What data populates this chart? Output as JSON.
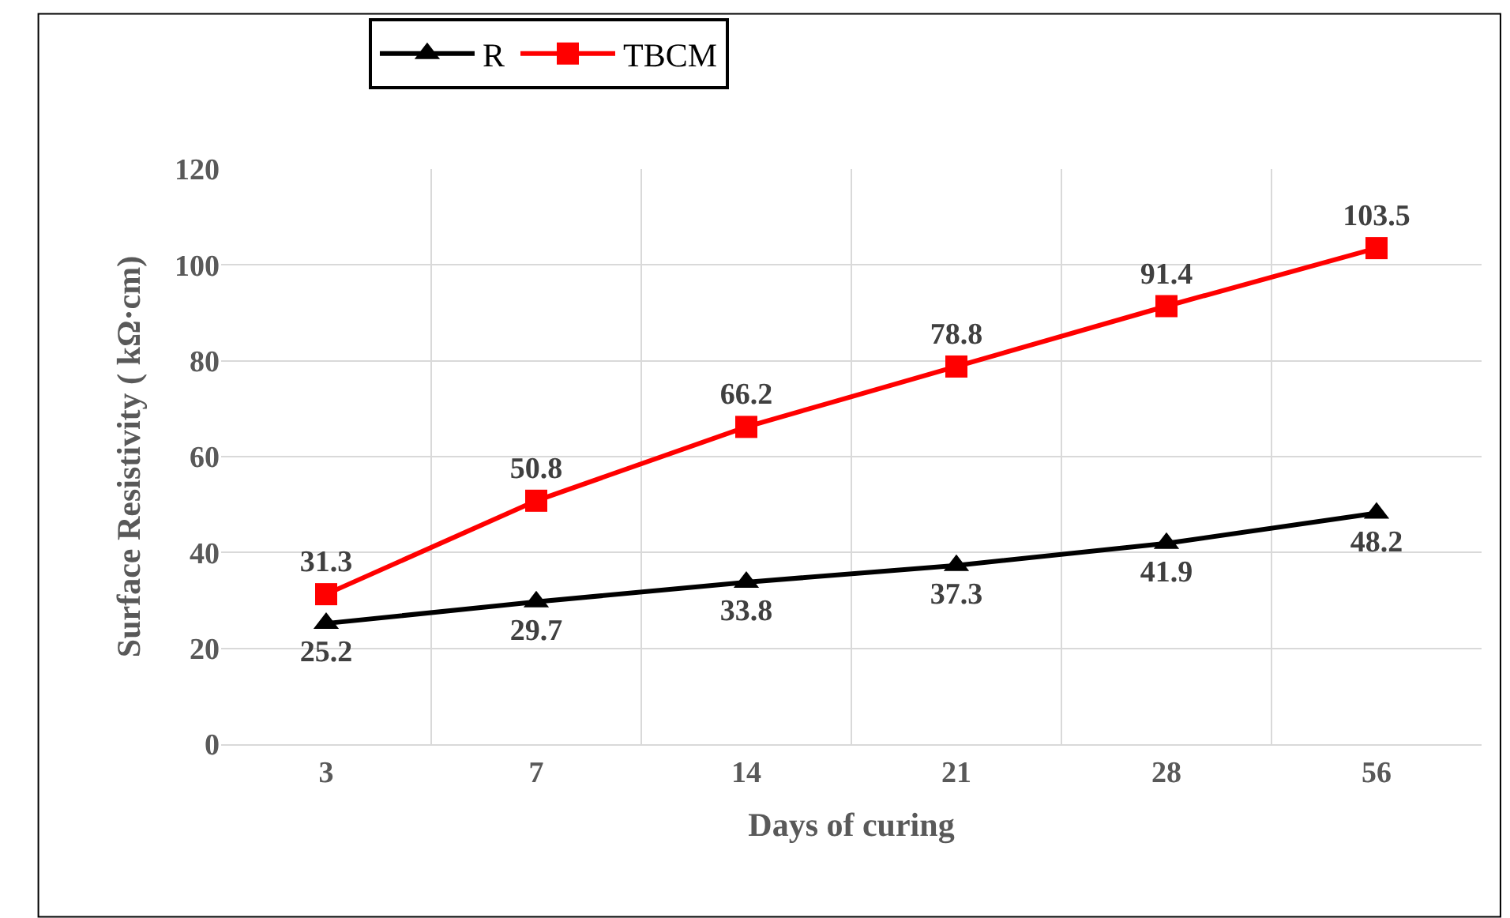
{
  "chart_data": {
    "type": "line",
    "xlabel": "Days of curing",
    "ylabel": "Surface Resistivity ( kΩ·cm)",
    "categories": [
      "3",
      "7",
      "14",
      "21",
      "28",
      "56"
    ],
    "series": [
      {
        "name": "R",
        "color": "#000000",
        "marker": "triangle",
        "values": [
          25.2,
          29.7,
          33.8,
          37.3,
          41.9,
          48.2
        ]
      },
      {
        "name": "TBCM",
        "color": "#ff0000",
        "marker": "square",
        "values": [
          31.3,
          50.8,
          66.2,
          78.8,
          91.4,
          103.5
        ]
      }
    ],
    "ylim": [
      0,
      120
    ],
    "yticks": [
      0,
      20,
      40,
      60,
      80,
      100,
      120
    ],
    "grid": true,
    "legend": "top",
    "data_labels": true,
    "line_style": "solid"
  }
}
